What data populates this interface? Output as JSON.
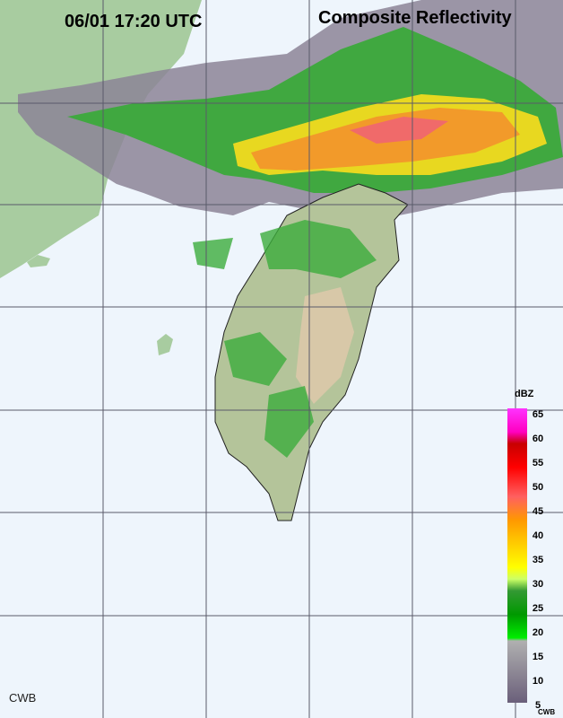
{
  "header": {
    "time": "06/01 17:20 UTC",
    "title": "Composite Reflectivity"
  },
  "legend": {
    "unit": "dBZ",
    "ticks": [
      65,
      60,
      55,
      50,
      45,
      40,
      35,
      30,
      25,
      20,
      15,
      10,
      5
    ],
    "source": "CWB"
  },
  "footer": {
    "source": "CWB"
  }
}
